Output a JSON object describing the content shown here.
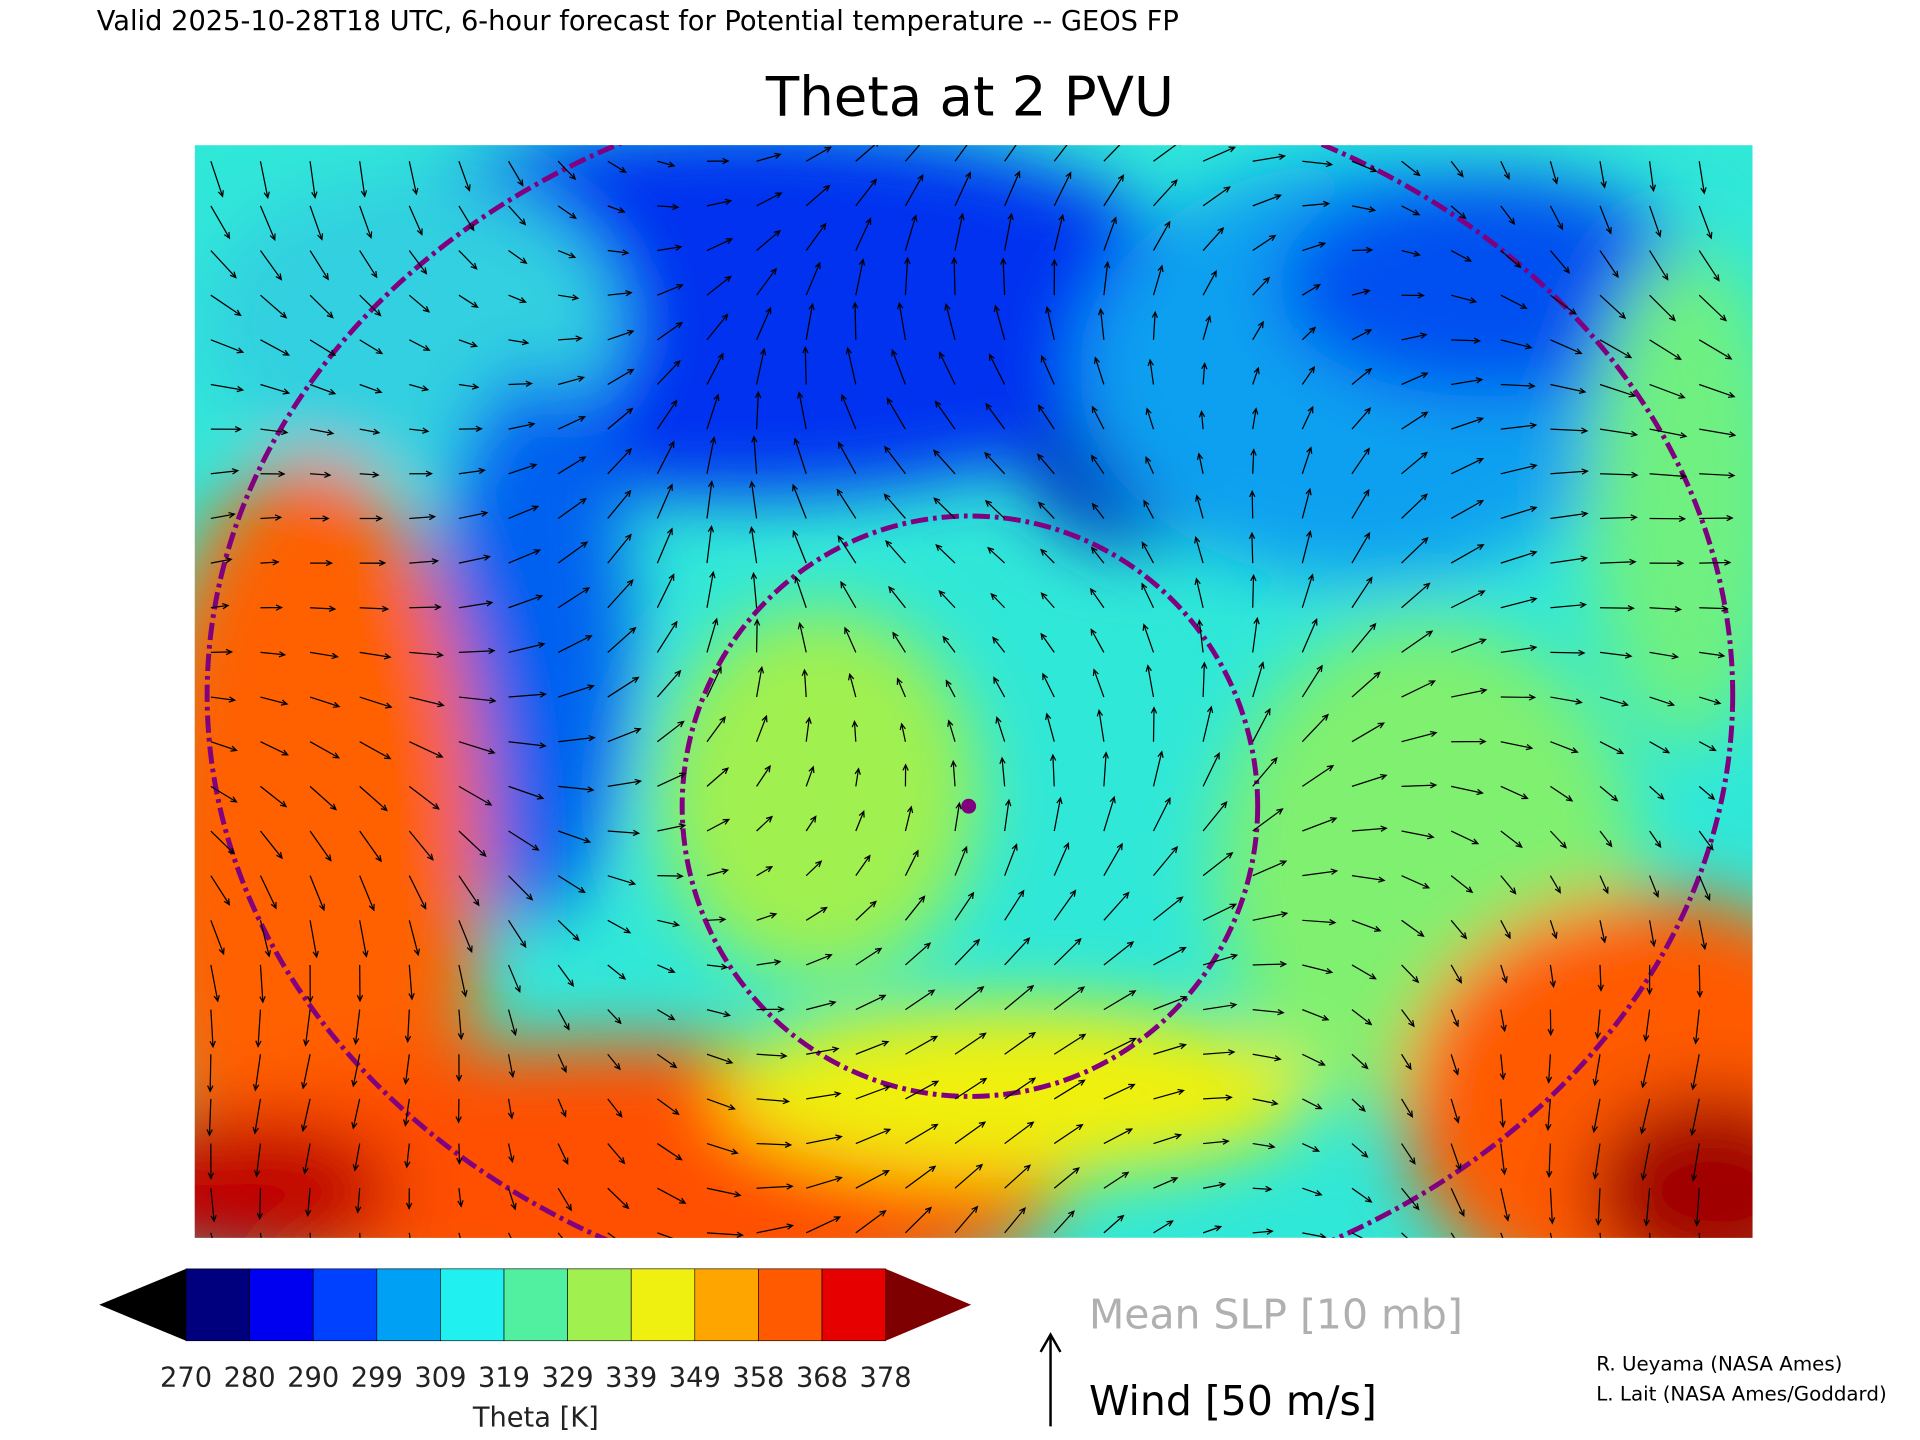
{
  "header": {
    "subtitle": "Valid 2025-10-28T18 UTC, 6-hour forecast for Potential temperature -- GEOS FP",
    "title": "Theta at 2 PVU"
  },
  "colorbar": {
    "label": "Theta [K]",
    "ticks": [
      270,
      280,
      290,
      299,
      309,
      319,
      329,
      339,
      349,
      358,
      368,
      378
    ],
    "colors": [
      "#000000",
      "#00007f",
      "#0000f0",
      "#0040ff",
      "#00a0f5",
      "#20f0f0",
      "#50f0a0",
      "#a0f050",
      "#f0f010",
      "#ffa500",
      "#ff5a00",
      "#e60000",
      "#7f0000"
    ]
  },
  "legend": {
    "slp": "Mean SLP [10 mb]",
    "wind": "Wind [50 m/s]"
  },
  "credits": [
    "R. Ueyama (NASA Ames)",
    "L. Lait (NASA Ames/Goddard)"
  ]
}
